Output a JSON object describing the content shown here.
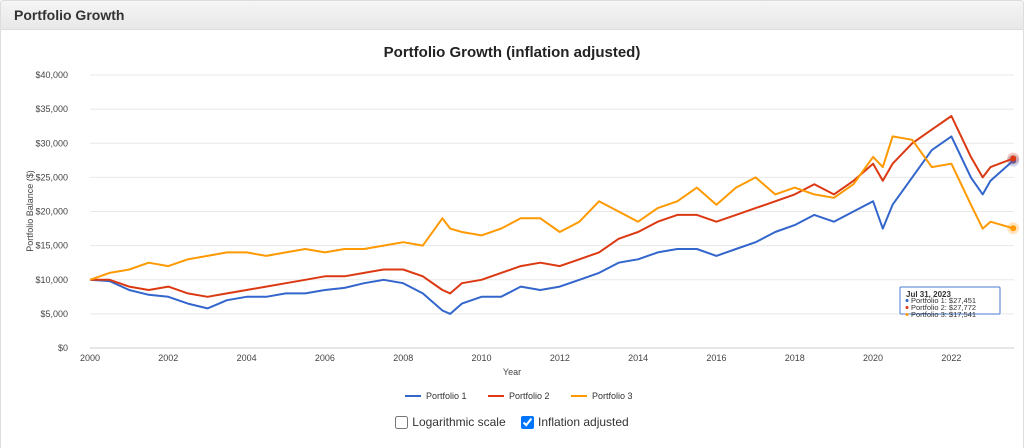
{
  "header": {
    "title": "Portfolio Growth"
  },
  "options": {
    "log_label": "Logarithmic scale",
    "log_checked": false,
    "infl_label": "Inflation adjusted",
    "infl_checked": true
  },
  "chart_data": {
    "type": "line",
    "title": "Portfolio Growth (inflation adjusted)",
    "xlabel": "Year",
    "ylabel": "Portfolio Balance ($)",
    "xlim": [
      2000,
      2023.6
    ],
    "ylim": [
      0,
      40000
    ],
    "xticks": [
      "2000",
      "2002",
      "2004",
      "2006",
      "2008",
      "2010",
      "2012",
      "2014",
      "2016",
      "2018",
      "2020",
      "2022"
    ],
    "yticks": [
      "$0",
      "$5,000",
      "$10,000",
      "$15,000",
      "$20,000",
      "$25,000",
      "$30,000",
      "$35,000",
      "$40,000"
    ],
    "grid": true,
    "legend": "bottom",
    "x": [
      2000,
      2000.5,
      2001,
      2001.5,
      2002,
      2002.5,
      2003,
      2003.5,
      2004,
      2004.5,
      2005,
      2005.5,
      2006,
      2006.5,
      2007,
      2007.5,
      2008,
      2008.5,
      2009,
      2009.2,
      2009.5,
      2010,
      2010.5,
      2011,
      2011.5,
      2012,
      2012.5,
      2013,
      2013.5,
      2014,
      2014.5,
      2015,
      2015.5,
      2016,
      2016.5,
      2017,
      2017.5,
      2018,
      2018.5,
      2019,
      2019.5,
      2020,
      2020.25,
      2020.5,
      2021,
      2021.5,
      2022,
      2022.5,
      2022.8,
      2023,
      2023.58
    ],
    "series": [
      {
        "name": "Portfolio 1",
        "color": "#3366cc",
        "values": [
          10000,
          9800,
          8500,
          7800,
          7500,
          6500,
          5800,
          7000,
          7500,
          7500,
          8000,
          8000,
          8500,
          8800,
          9500,
          10000,
          9500,
          8000,
          5500,
          5000,
          6500,
          7500,
          7500,
          9000,
          8500,
          9000,
          10000,
          11000,
          12500,
          13000,
          14000,
          14500,
          14500,
          13500,
          14500,
          15500,
          17000,
          18000,
          19500,
          18500,
          20000,
          21500,
          17500,
          21000,
          25000,
          29000,
          31000,
          25000,
          22500,
          24500,
          27451
        ]
      },
      {
        "name": "Portfolio 2",
        "color": "#dc3912",
        "values": [
          10000,
          10000,
          9000,
          8500,
          9000,
          8000,
          7500,
          8000,
          8500,
          9000,
          9500,
          10000,
          10500,
          10500,
          11000,
          11500,
          11500,
          10500,
          8500,
          8000,
          9500,
          10000,
          11000,
          12000,
          12500,
          12000,
          13000,
          14000,
          16000,
          17000,
          18500,
          19500,
          19500,
          18500,
          19500,
          20500,
          21500,
          22500,
          24000,
          22500,
          24500,
          27000,
          24500,
          27000,
          30000,
          32000,
          34000,
          28000,
          25000,
          26500,
          27772
        ]
      },
      {
        "name": "Portfolio 3",
        "color": "#ff9900",
        "values": [
          10000,
          11000,
          11500,
          12500,
          12000,
          13000,
          13500,
          14000,
          14000,
          13500,
          14000,
          14500,
          14000,
          14500,
          14500,
          15000,
          15500,
          15000,
          19000,
          17500,
          17000,
          16500,
          17500,
          19000,
          19000,
          17000,
          18500,
          21500,
          20000,
          18500,
          20500,
          21500,
          23500,
          21000,
          23500,
          25000,
          22500,
          23500,
          22500,
          22000,
          24000,
          28000,
          26500,
          31000,
          30500,
          26500,
          27000,
          21000,
          17500,
          18500,
          17541
        ]
      }
    ],
    "tooltip": {
      "date": "Jul 31, 2023",
      "lines": [
        "Portfolio 1: $27,451",
        "Portfolio 2: $27,772",
        "Portfolio 3: $17,541"
      ]
    }
  }
}
